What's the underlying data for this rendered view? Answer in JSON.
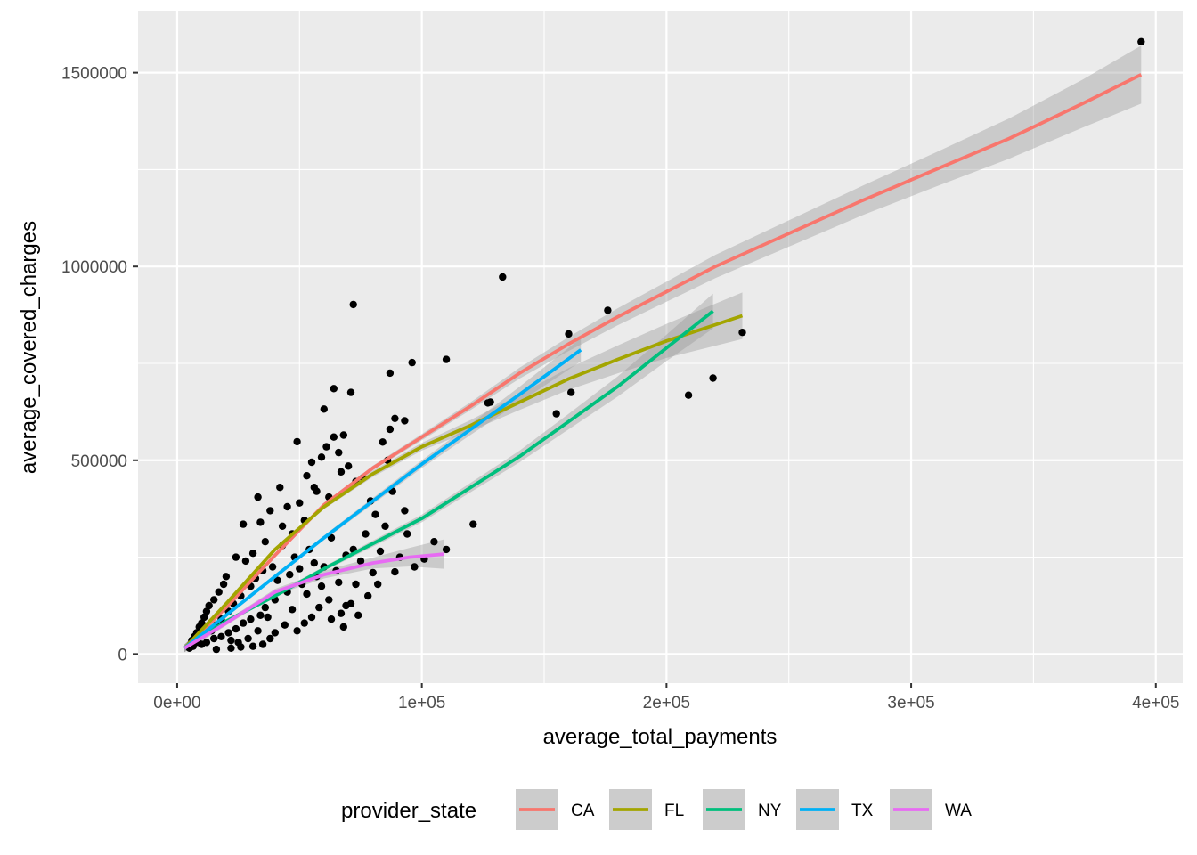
{
  "chart_data": {
    "type": "scatter",
    "xlabel": "average_total_payments",
    "ylabel": "average_covered_charges",
    "x_ticks": [
      0,
      100000,
      200000,
      300000,
      400000
    ],
    "x_tick_labels": [
      "0e+00",
      "1e+05",
      "2e+05",
      "3e+05",
      "4e+05"
    ],
    "y_ticks": [
      0,
      500000,
      1000000,
      1500000
    ],
    "y_tick_labels": [
      "0",
      "500000",
      "1000000",
      "1500000"
    ],
    "xlim": [
      -16000,
      411000
    ],
    "ylim": [
      -75000,
      1660000
    ],
    "grid": true,
    "legend": {
      "title": "provider_state",
      "position": "bottom"
    },
    "points": [
      [
        394000,
        1580000
      ],
      [
        133000,
        973000
      ],
      [
        72000,
        902000
      ],
      [
        176000,
        887000
      ],
      [
        160000,
        826000
      ],
      [
        231000,
        830000
      ],
      [
        110000,
        760000
      ],
      [
        96000,
        752000
      ],
      [
        87000,
        725000
      ],
      [
        64000,
        685000
      ],
      [
        71000,
        675000
      ],
      [
        219000,
        712000
      ],
      [
        209000,
        668000
      ],
      [
        128000,
        650000
      ],
      [
        60000,
        632000
      ],
      [
        127000,
        648000
      ],
      [
        161000,
        675000
      ],
      [
        155000,
        620000
      ],
      [
        89000,
        608000
      ],
      [
        93000,
        602000
      ],
      [
        87000,
        580000
      ],
      [
        84000,
        547000
      ],
      [
        68000,
        565000
      ],
      [
        121000,
        335000
      ],
      [
        110000,
        270000
      ],
      [
        89000,
        212000
      ],
      [
        94000,
        310000
      ],
      [
        93000,
        370000
      ],
      [
        88000,
        420000
      ],
      [
        76000,
        455000
      ],
      [
        64000,
        560000
      ],
      [
        61000,
        535000
      ],
      [
        55000,
        495000
      ],
      [
        49000,
        548000
      ],
      [
        59000,
        508000
      ],
      [
        66000,
        520000
      ],
      [
        70000,
        485000
      ],
      [
        53000,
        460000
      ],
      [
        57000,
        420000
      ],
      [
        62000,
        405000
      ],
      [
        42000,
        430000
      ],
      [
        45000,
        380000
      ],
      [
        33000,
        405000
      ],
      [
        38000,
        370000
      ],
      [
        34000,
        340000
      ],
      [
        27000,
        335000
      ],
      [
        52000,
        345000
      ],
      [
        47000,
        310000
      ],
      [
        63000,
        300000
      ],
      [
        69000,
        255000
      ],
      [
        72000,
        270000
      ],
      [
        66000,
        185000
      ],
      [
        59000,
        175000
      ],
      [
        53000,
        155000
      ],
      [
        62000,
        140000
      ],
      [
        69000,
        125000
      ],
      [
        74000,
        100000
      ],
      [
        44000,
        75000
      ],
      [
        49000,
        60000
      ],
      [
        40000,
        55000
      ],
      [
        52000,
        80000
      ],
      [
        37000,
        95000
      ],
      [
        33000,
        60000
      ],
      [
        29000,
        40000
      ],
      [
        25000,
        30000
      ],
      [
        22000,
        35000
      ],
      [
        58000,
        120000
      ],
      [
        67000,
        105000
      ],
      [
        71000,
        130000
      ],
      [
        80000,
        210000
      ],
      [
        82000,
        180000
      ],
      [
        83000,
        265000
      ],
      [
        85000,
        330000
      ],
      [
        79000,
        395000
      ],
      [
        81000,
        360000
      ],
      [
        54000,
        270000
      ],
      [
        48000,
        250000
      ],
      [
        43000,
        280000
      ],
      [
        39000,
        225000
      ],
      [
        36000,
        290000
      ],
      [
        31000,
        260000
      ],
      [
        28000,
        240000
      ],
      [
        24000,
        250000
      ],
      [
        20000,
        200000
      ],
      [
        19000,
        180000
      ],
      [
        17000,
        160000
      ],
      [
        15000,
        140000
      ],
      [
        13000,
        125000
      ],
      [
        12000,
        110000
      ],
      [
        11000,
        95000
      ],
      [
        10000,
        80000
      ],
      [
        9000,
        70000
      ],
      [
        8000,
        55000
      ],
      [
        7000,
        45000
      ],
      [
        6000,
        35000
      ],
      [
        5500,
        25000
      ],
      [
        5000,
        15000
      ],
      [
        6500,
        20000
      ],
      [
        8500,
        30000
      ],
      [
        14000,
        60000
      ],
      [
        16000,
        75000
      ],
      [
        18000,
        90000
      ],
      [
        21000,
        110000
      ],
      [
        23000,
        130000
      ],
      [
        26000,
        150000
      ],
      [
        30000,
        175000
      ],
      [
        32000,
        195000
      ],
      [
        35000,
        215000
      ],
      [
        41000,
        190000
      ],
      [
        46000,
        205000
      ],
      [
        50000,
        220000
      ],
      [
        56000,
        235000
      ],
      [
        60000,
        225000
      ],
      [
        65000,
        215000
      ],
      [
        75000,
        240000
      ],
      [
        78000,
        150000
      ],
      [
        73000,
        180000
      ],
      [
        57000,
        200000
      ],
      [
        51000,
        180000
      ],
      [
        45000,
        160000
      ],
      [
        40000,
        140000
      ],
      [
        36000,
        120000
      ],
      [
        34000,
        100000
      ],
      [
        30000,
        90000
      ],
      [
        27000,
        80000
      ],
      [
        24000,
        65000
      ],
      [
        21000,
        55000
      ],
      [
        18000,
        45000
      ],
      [
        15000,
        40000
      ],
      [
        12000,
        30000
      ],
      [
        10000,
        25000
      ],
      [
        43000,
        330000
      ],
      [
        50000,
        390000
      ],
      [
        56000,
        430000
      ],
      [
        67000,
        470000
      ],
      [
        73000,
        445000
      ],
      [
        86000,
        500000
      ],
      [
        77000,
        310000
      ],
      [
        91000,
        250000
      ],
      [
        97000,
        225000
      ],
      [
        101000,
        245000
      ],
      [
        105000,
        290000
      ],
      [
        47000,
        115000
      ],
      [
        55000,
        95000
      ],
      [
        63000,
        90000
      ],
      [
        68000,
        70000
      ],
      [
        38000,
        40000
      ],
      [
        35000,
        25000
      ],
      [
        31000,
        20000
      ],
      [
        26000,
        18000
      ],
      [
        22000,
        15000
      ],
      [
        16000,
        12000
      ]
    ],
    "series": [
      {
        "name": "CA",
        "color": "#F8766D",
        "x": [
          3000,
          20000,
          40000,
          60000,
          80000,
          100000,
          120000,
          140000,
          160000,
          180000,
          200000,
          220000,
          250000,
          280000,
          310000,
          340000,
          370000,
          394000
        ],
        "y": [
          15000,
          120000,
          255000,
          385000,
          480000,
          560000,
          640000,
          725000,
          800000,
          870000,
          935000,
          1000000,
          1085000,
          1170000,
          1250000,
          1330000,
          1420000,
          1495000
        ],
        "band_hw": [
          10000,
          5000,
          5000,
          5000,
          6000,
          8000,
          10000,
          14000,
          18000,
          22000,
          26000,
          30000,
          34000,
          38000,
          44000,
          52000,
          62000,
          75000
        ]
      },
      {
        "name": "FL",
        "color": "#A3A500",
        "x": [
          3000,
          20000,
          40000,
          60000,
          80000,
          100000,
          120000,
          140000,
          160000,
          180000,
          200000,
          231000
        ],
        "y": [
          15000,
          130000,
          270000,
          380000,
          465000,
          535000,
          590000,
          650000,
          710000,
          760000,
          808000,
          873000
        ],
        "band_hw": [
          10000,
          5000,
          5000,
          6000,
          8000,
          10000,
          14000,
          20000,
          28000,
          36000,
          44000,
          60000
        ]
      },
      {
        "name": "NY",
        "color": "#00BF7D",
        "x": [
          3000,
          20000,
          40000,
          60000,
          80000,
          100000,
          120000,
          140000,
          160000,
          180000,
          200000,
          219000
        ],
        "y": [
          15000,
          85000,
          150000,
          220000,
          285000,
          350000,
          430000,
          510000,
          600000,
          690000,
          790000,
          885000
        ],
        "band_hw": [
          10000,
          5000,
          5000,
          6000,
          8000,
          10000,
          12000,
          15000,
          20000,
          26000,
          34000,
          45000
        ]
      },
      {
        "name": "TX",
        "color": "#00B0F6",
        "x": [
          3000,
          20000,
          40000,
          60000,
          80000,
          100000,
          120000,
          140000,
          165000
        ],
        "y": [
          15000,
          100000,
          200000,
          300000,
          395000,
          490000,
          580000,
          670000,
          785000
        ],
        "band_hw": [
          10000,
          5000,
          5000,
          6000,
          8000,
          10000,
          14000,
          20000,
          30000
        ]
      },
      {
        "name": "WA",
        "color": "#E76BF3",
        "x": [
          3000,
          20000,
          40000,
          60000,
          80000,
          95000,
          109000
        ],
        "y": [
          15000,
          80000,
          160000,
          205000,
          235000,
          250000,
          258000
        ],
        "band_hw": [
          10000,
          6000,
          8000,
          10000,
          14000,
          24000,
          38000
        ]
      }
    ]
  }
}
